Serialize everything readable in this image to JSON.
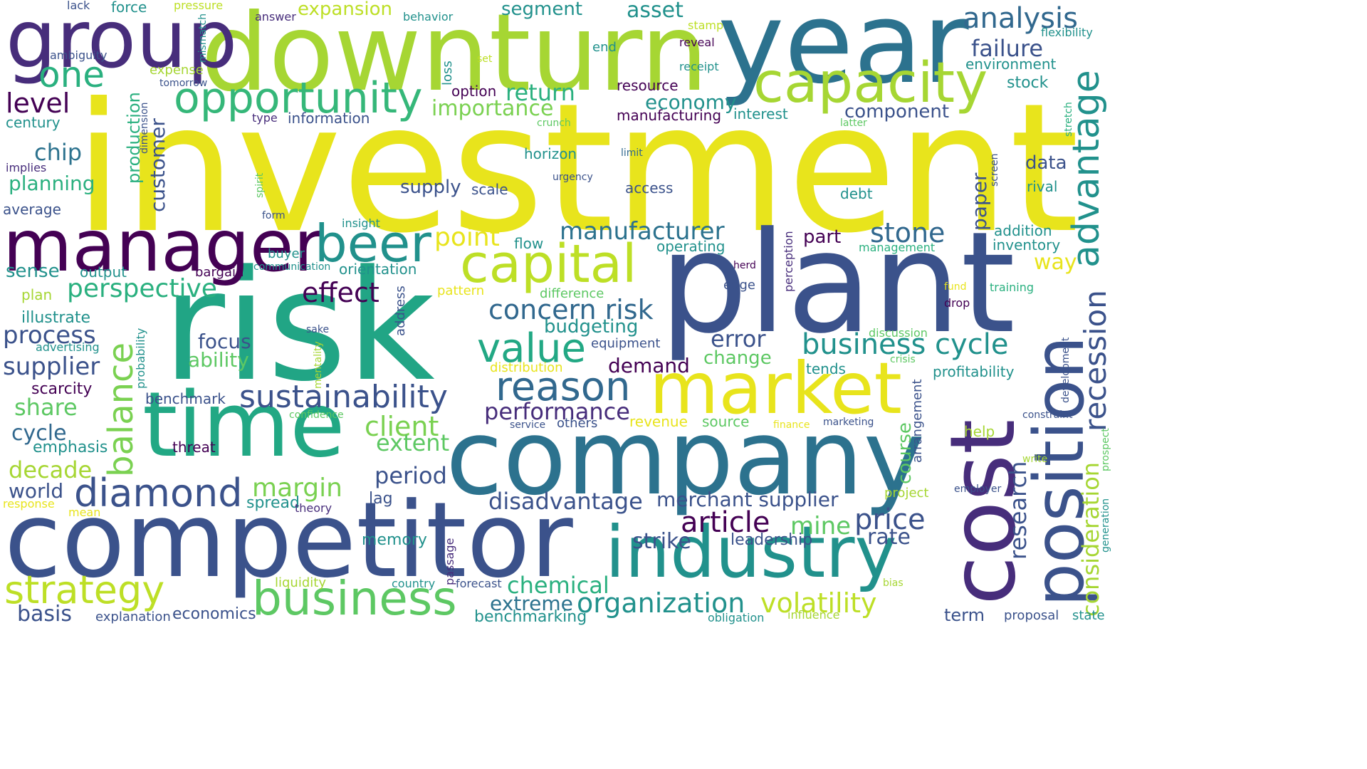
{
  "palette": {
    "background": "#ffffff",
    "yellow": "#e8e41c",
    "yellow_green": "#a6d633",
    "green": "#5dc863",
    "teal_green": "#2ab07f",
    "teal": "#21918c",
    "blue_teal": "#2c728e",
    "blue": "#3b528b",
    "indigo": "#472d7b",
    "purple": "#440154"
  },
  "words": [
    {
      "id": "investment",
      "text": "investment",
      "color": "#e8e41c"
    },
    {
      "id": "downturn",
      "text": "downturn",
      "color": "#a6d633"
    },
    {
      "id": "year",
      "text": "year",
      "color": "#2c728e"
    },
    {
      "id": "group",
      "text": "group",
      "color": "#472d7b"
    },
    {
      "id": "risk",
      "text": "risk",
      "color": "#21a585"
    },
    {
      "id": "plant",
      "text": "plant",
      "color": "#3b528b"
    },
    {
      "id": "company",
      "text": "company",
      "color": "#2c728e"
    },
    {
      "id": "competitor",
      "text": "competitor",
      "color": "#3b528b"
    },
    {
      "id": "manager",
      "text": "manager",
      "color": "#440154"
    },
    {
      "id": "time",
      "text": "time",
      "color": "#22a884"
    },
    {
      "id": "cost",
      "text": "cost",
      "color": "#472d7b"
    },
    {
      "id": "industry",
      "text": "industry",
      "color": "#21918c"
    },
    {
      "id": "market",
      "text": "market",
      "color": "#e8e41c"
    },
    {
      "id": "position",
      "text": "position",
      "color": "#3b528b"
    },
    {
      "id": "capacity",
      "text": "capacity",
      "color": "#a6d633"
    },
    {
      "id": "capital",
      "text": "capital",
      "color": "#bddf26"
    },
    {
      "id": "opportunity",
      "text": "opportunity",
      "color": "#35b779"
    },
    {
      "id": "beer",
      "text": "beer",
      "color": "#21918c"
    },
    {
      "id": "business-1",
      "text": "business",
      "color": "#5dc863"
    },
    {
      "id": "strategy",
      "text": "strategy",
      "color": "#bddf26"
    },
    {
      "id": "diamond",
      "text": "diamond",
      "color": "#3b528b"
    },
    {
      "id": "sustainability",
      "text": "sustainability",
      "color": "#3b528b"
    },
    {
      "id": "value",
      "text": "value",
      "color": "#22a884"
    },
    {
      "id": "reason",
      "text": "reason",
      "color": "#31688e"
    },
    {
      "id": "one",
      "text": "one",
      "color": "#2ab07f"
    },
    {
      "id": "analysis",
      "text": "analysis",
      "color": "#31688e"
    },
    {
      "id": "advantage",
      "text": "advantage",
      "color": "#21918c"
    },
    {
      "id": "balance",
      "text": "balance",
      "color": "#7ad151"
    },
    {
      "id": "business-cycle",
      "text": "business cycle",
      "color": "#21918c"
    },
    {
      "id": "organization",
      "text": "organization",
      "color": "#21918c"
    },
    {
      "id": "volatility",
      "text": "volatility",
      "color": "#bddf26"
    },
    {
      "id": "recession",
      "text": "recession",
      "color": "#3b528b"
    },
    {
      "id": "consideration",
      "text": "consideration",
      "color": "#a6d633"
    },
    {
      "id": "research",
      "text": "research",
      "color": "#3b528b"
    },
    {
      "id": "article",
      "text": "article",
      "color": "#440154"
    },
    {
      "id": "price",
      "text": "price",
      "color": "#3b528b"
    },
    {
      "id": "mine",
      "text": "mine",
      "color": "#5dc863"
    },
    {
      "id": "rate",
      "text": "rate",
      "color": "#3b528b"
    },
    {
      "id": "stone",
      "text": "stone",
      "color": "#31688e"
    },
    {
      "id": "concern-risk",
      "text": "concern risk",
      "color": "#31688e"
    },
    {
      "id": "manufacturer",
      "text": "manufacturer",
      "color": "#2c728e"
    },
    {
      "id": "perspective",
      "text": "perspective",
      "color": "#2ab07f"
    },
    {
      "id": "effect",
      "text": "effect",
      "color": "#440154"
    },
    {
      "id": "point",
      "text": "point",
      "color": "#e8e41c"
    },
    {
      "id": "performance",
      "text": "performance",
      "color": "#472d7b"
    },
    {
      "id": "client",
      "text": "client",
      "color": "#7ad151"
    },
    {
      "id": "extent",
      "text": "extent",
      "color": "#5dc863"
    },
    {
      "id": "period",
      "text": "period",
      "color": "#3b528b"
    },
    {
      "id": "margin",
      "text": "margin",
      "color": "#7ad151"
    },
    {
      "id": "disadvantage",
      "text": "disadvantage",
      "color": "#3b528b"
    },
    {
      "id": "merchant-supplier",
      "text": "merchant supplier",
      "color": "#3b528b"
    },
    {
      "id": "strike",
      "text": "strike",
      "color": "#3b528b"
    },
    {
      "id": "leadership",
      "text": "leadership",
      "color": "#3b528b"
    },
    {
      "id": "chemical",
      "text": "chemical",
      "color": "#2ab07f"
    },
    {
      "id": "extreme",
      "text": "extreme",
      "color": "#2c728e"
    },
    {
      "id": "benchmarking",
      "text": "benchmarking",
      "color": "#21918c"
    },
    {
      "id": "economics",
      "text": "economics",
      "color": "#3b528b"
    },
    {
      "id": "basis",
      "text": "basis",
      "color": "#3b528b"
    },
    {
      "id": "explanation",
      "text": "explanation",
      "color": "#3b528b"
    },
    {
      "id": "supplier",
      "text": "supplier",
      "color": "#3b528b"
    },
    {
      "id": "process",
      "text": "process",
      "color": "#3b528b"
    },
    {
      "id": "illustrate",
      "text": "illustrate",
      "color": "#21918c"
    },
    {
      "id": "advertising",
      "text": "advertising",
      "color": "#21918c"
    },
    {
      "id": "scarcity",
      "text": "scarcity",
      "color": "#440154"
    },
    {
      "id": "share",
      "text": "share",
      "color": "#5dc863"
    },
    {
      "id": "cycle",
      "text": "cycle",
      "color": "#31688e"
    },
    {
      "id": "emphasis",
      "text": "emphasis",
      "color": "#21918c"
    },
    {
      "id": "decade",
      "text": "decade",
      "color": "#a6d633"
    },
    {
      "id": "world",
      "text": "world",
      "color": "#3b528b"
    },
    {
      "id": "response",
      "text": "response",
      "color": "#e8e41c"
    },
    {
      "id": "mean",
      "text": "mean",
      "color": "#e8e41c"
    },
    {
      "id": "spread",
      "text": "spread",
      "color": "#21918c"
    },
    {
      "id": "theory",
      "text": "theory",
      "color": "#472d7b"
    },
    {
      "id": "lag",
      "text": "lag",
      "color": "#3b528b"
    },
    {
      "id": "memory",
      "text": "memory",
      "color": "#21918c"
    },
    {
      "id": "liquidity",
      "text": "liquidity",
      "color": "#a6d633"
    },
    {
      "id": "country",
      "text": "country",
      "color": "#21918c"
    },
    {
      "id": "forecast",
      "text": "forecast",
      "color": "#3b528b"
    },
    {
      "id": "passage",
      "text": "passage",
      "color": "#472d7b"
    },
    {
      "id": "level",
      "text": "level",
      "color": "#440154"
    },
    {
      "id": "century",
      "text": "century",
      "color": "#21918c"
    },
    {
      "id": "chip",
      "text": "chip",
      "color": "#2c728e"
    },
    {
      "id": "planning",
      "text": "planning",
      "color": "#2ab07f"
    },
    {
      "id": "implies",
      "text": "implies",
      "color": "#472d7b"
    },
    {
      "id": "average",
      "text": "average",
      "color": "#3b528b"
    },
    {
      "id": "sense",
      "text": "sense",
      "color": "#21918c"
    },
    {
      "id": "output",
      "text": "output",
      "color": "#21918c"
    },
    {
      "id": "plan",
      "text": "plan",
      "color": "#a6d633"
    },
    {
      "id": "lack",
      "text": "lack",
      "color": "#3b528b"
    },
    {
      "id": "force",
      "text": "force",
      "color": "#21918c"
    },
    {
      "id": "pressure",
      "text": "pressure",
      "color": "#bddf26"
    },
    {
      "id": "ambiguity",
      "text": "ambiguity",
      "color": "#3b528b"
    },
    {
      "id": "mismatch",
      "text": "mismatch",
      "color": "#21918c"
    },
    {
      "id": "expense",
      "text": "expense",
      "color": "#a6d633"
    },
    {
      "id": "tomorrow",
      "text": "tomorrow",
      "color": "#3b528b"
    },
    {
      "id": "answer",
      "text": "answer",
      "color": "#472d7b"
    },
    {
      "id": "expansion",
      "text": "expansion",
      "color": "#bddf26"
    },
    {
      "id": "behavior",
      "text": "behavior",
      "color": "#21918c"
    },
    {
      "id": "segment",
      "text": "segment",
      "color": "#21918c"
    },
    {
      "id": "asset",
      "text": "asset",
      "color": "#21918c"
    },
    {
      "id": "stamp",
      "text": "stamp",
      "color": "#bddf26"
    },
    {
      "id": "reveal",
      "text": "reveal",
      "color": "#440154"
    },
    {
      "id": "end",
      "text": "end",
      "color": "#21918c"
    },
    {
      "id": "receipt",
      "text": "receipt",
      "color": "#21918c"
    },
    {
      "id": "set",
      "text": "set",
      "color": "#bddf26"
    },
    {
      "id": "loss",
      "text": "loss",
      "color": "#21918c"
    },
    {
      "id": "failure",
      "text": "failure",
      "color": "#3b528b"
    },
    {
      "id": "flexibility",
      "text": "flexibility",
      "color": "#21918c"
    },
    {
      "id": "environment",
      "text": "environment",
      "color": "#21918c"
    },
    {
      "id": "stock",
      "text": "stock",
      "color": "#21918c"
    },
    {
      "id": "option",
      "text": "option",
      "color": "#440154"
    },
    {
      "id": "return",
      "text": "return",
      "color": "#2ab07f"
    },
    {
      "id": "resource",
      "text": "resource",
      "color": "#440154"
    },
    {
      "id": "economy",
      "text": "economy",
      "color": "#21918c"
    },
    {
      "id": "component",
      "text": "component",
      "color": "#3b528b"
    },
    {
      "id": "importance",
      "text": "importance",
      "color": "#7ad151"
    },
    {
      "id": "manufacturing",
      "text": "manufacturing",
      "color": "#440154"
    },
    {
      "id": "interest",
      "text": "interest",
      "color": "#21918c"
    },
    {
      "id": "stretch",
      "text": "stretch",
      "color": "#2ab07f"
    },
    {
      "id": "information",
      "text": "information",
      "color": "#3b528b"
    },
    {
      "id": "type",
      "text": "type",
      "color": "#472d7b"
    },
    {
      "id": "production",
      "text": "production",
      "color": "#2ab07f"
    },
    {
      "id": "customer",
      "text": "customer",
      "color": "#3b528b"
    },
    {
      "id": "dimension",
      "text": "dimension",
      "color": "#3b528b"
    },
    {
      "id": "crunch",
      "text": "crunch",
      "color": "#5dc863"
    },
    {
      "id": "latter",
      "text": "latter",
      "color": "#5dc863"
    },
    {
      "id": "horizon",
      "text": "horizon",
      "color": "#21918c"
    },
    {
      "id": "limit",
      "text": "limit",
      "color": "#31688e"
    },
    {
      "id": "screen",
      "text": "screen",
      "color": "#3b528b"
    },
    {
      "id": "data",
      "text": "data",
      "color": "#3b528b"
    },
    {
      "id": "urgency",
      "text": "urgency",
      "color": "#3b528b"
    },
    {
      "id": "spirit",
      "text": "spirit",
      "color": "#5dc863"
    },
    {
      "id": "supply",
      "text": "supply",
      "color": "#3b528b"
    },
    {
      "id": "scale",
      "text": "scale",
      "color": "#3b528b"
    },
    {
      "id": "access",
      "text": "access",
      "color": "#3b528b"
    },
    {
      "id": "debt",
      "text": "debt",
      "color": "#21918c"
    },
    {
      "id": "rival",
      "text": "rival",
      "color": "#21918c"
    },
    {
      "id": "paper",
      "text": "paper",
      "color": "#3b528b"
    },
    {
      "id": "form",
      "text": "form",
      "color": "#3b528b"
    },
    {
      "id": "insight",
      "text": "insight",
      "color": "#21918c"
    },
    {
      "id": "flow",
      "text": "flow",
      "color": "#21918c"
    },
    {
      "id": "part",
      "text": "part",
      "color": "#440154"
    },
    {
      "id": "perception",
      "text": "perception",
      "color": "#472d7b"
    },
    {
      "id": "addition",
      "text": "addition",
      "color": "#21918c"
    },
    {
      "id": "inventory",
      "text": "inventory",
      "color": "#21918c"
    },
    {
      "id": "buyer",
      "text": "buyer",
      "color": "#21918c"
    },
    {
      "id": "communication",
      "text": "communication",
      "color": "#21918c"
    },
    {
      "id": "orientation",
      "text": "orientation",
      "color": "#21918c"
    },
    {
      "id": "bargain",
      "text": "bargain",
      "color": "#440154"
    },
    {
      "id": "operating",
      "text": "operating",
      "color": "#21918c"
    },
    {
      "id": "management",
      "text": "management",
      "color": "#2ab07f"
    },
    {
      "id": "herd",
      "text": "herd",
      "color": "#440154"
    },
    {
      "id": "way",
      "text": "way",
      "color": "#e8e41c"
    },
    {
      "id": "address",
      "text": "address",
      "color": "#3b528b"
    },
    {
      "id": "pattern",
      "text": "pattern",
      "color": "#e8e41c"
    },
    {
      "id": "difference",
      "text": "difference",
      "color": "#5dc863"
    },
    {
      "id": "edge",
      "text": "edge",
      "color": "#3b528b"
    },
    {
      "id": "fund",
      "text": "fund",
      "color": "#e8e41c"
    },
    {
      "id": "training",
      "text": "training",
      "color": "#2ab07f"
    },
    {
      "id": "drop",
      "text": "drop",
      "color": "#440154"
    },
    {
      "id": "probability",
      "text": "probability",
      "color": "#21918c"
    },
    {
      "id": "sake",
      "text": "sake",
      "color": "#3b528b"
    },
    {
      "id": "mentality",
      "text": "mentality",
      "color": "#a6d633"
    },
    {
      "id": "focus",
      "text": "focus",
      "color": "#3b528b"
    },
    {
      "id": "ability",
      "text": "ability",
      "color": "#5dc863"
    },
    {
      "id": "budgeting",
      "text": "budgeting",
      "color": "#21918c"
    },
    {
      "id": "error",
      "text": "error",
      "color": "#3b528b"
    },
    {
      "id": "equipment",
      "text": "equipment",
      "color": "#3b528b"
    },
    {
      "id": "change",
      "text": "change",
      "color": "#5dc863"
    },
    {
      "id": "discussion",
      "text": "discussion",
      "color": "#5dc863"
    },
    {
      "id": "crisis",
      "text": "crisis",
      "color": "#5dc863"
    },
    {
      "id": "distribution",
      "text": "distribution",
      "color": "#e8e41c"
    },
    {
      "id": "demand",
      "text": "demand",
      "color": "#440154"
    },
    {
      "id": "tends",
      "text": "tends",
      "color": "#21918c"
    },
    {
      "id": "profitability",
      "text": "profitability",
      "color": "#21918c"
    },
    {
      "id": "development",
      "text": "development",
      "color": "#3b528b"
    },
    {
      "id": "benchmark",
      "text": "benchmark",
      "color": "#3b528b"
    },
    {
      "id": "confidence",
      "text": "confidence",
      "color": "#5dc863"
    },
    {
      "id": "service",
      "text": "service",
      "color": "#3b528b"
    },
    {
      "id": "others",
      "text": "others",
      "color": "#3b528b"
    },
    {
      "id": "revenue",
      "text": "revenue",
      "color": "#e8e41c"
    },
    {
      "id": "source",
      "text": "source",
      "color": "#5dc863"
    },
    {
      "id": "finance",
      "text": "finance",
      "color": "#e8e41c"
    },
    {
      "id": "marketing",
      "text": "marketing",
      "color": "#3b528b"
    },
    {
      "id": "arrangement",
      "text": "arrangement",
      "color": "#3b528b"
    },
    {
      "id": "course",
      "text": "course",
      "color": "#5dc863"
    },
    {
      "id": "constraint",
      "text": "constraint",
      "color": "#3b528b"
    },
    {
      "id": "threat",
      "text": "threat",
      "color": "#440154"
    },
    {
      "id": "help",
      "text": "help",
      "color": "#a6d633"
    },
    {
      "id": "write",
      "text": "write",
      "color": "#a6d633"
    },
    {
      "id": "prospect",
      "text": "prospect",
      "color": "#5dc863"
    },
    {
      "id": "project",
      "text": "project",
      "color": "#a6d633"
    },
    {
      "id": "employer",
      "text": "employer",
      "color": "#3b528b"
    },
    {
      "id": "generation",
      "text": "generation",
      "color": "#21918c"
    },
    {
      "id": "term",
      "text": "term",
      "color": "#3b528b"
    },
    {
      "id": "proposal",
      "text": "proposal",
      "color": "#3b528b"
    },
    {
      "id": "state",
      "text": "state",
      "color": "#21918c"
    },
    {
      "id": "obligation",
      "text": "obligation",
      "color": "#21918c"
    },
    {
      "id": "influence",
      "text": "influence",
      "color": "#a6d633"
    },
    {
      "id": "bias",
      "text": "bias",
      "color": "#a6d633"
    }
  ]
}
